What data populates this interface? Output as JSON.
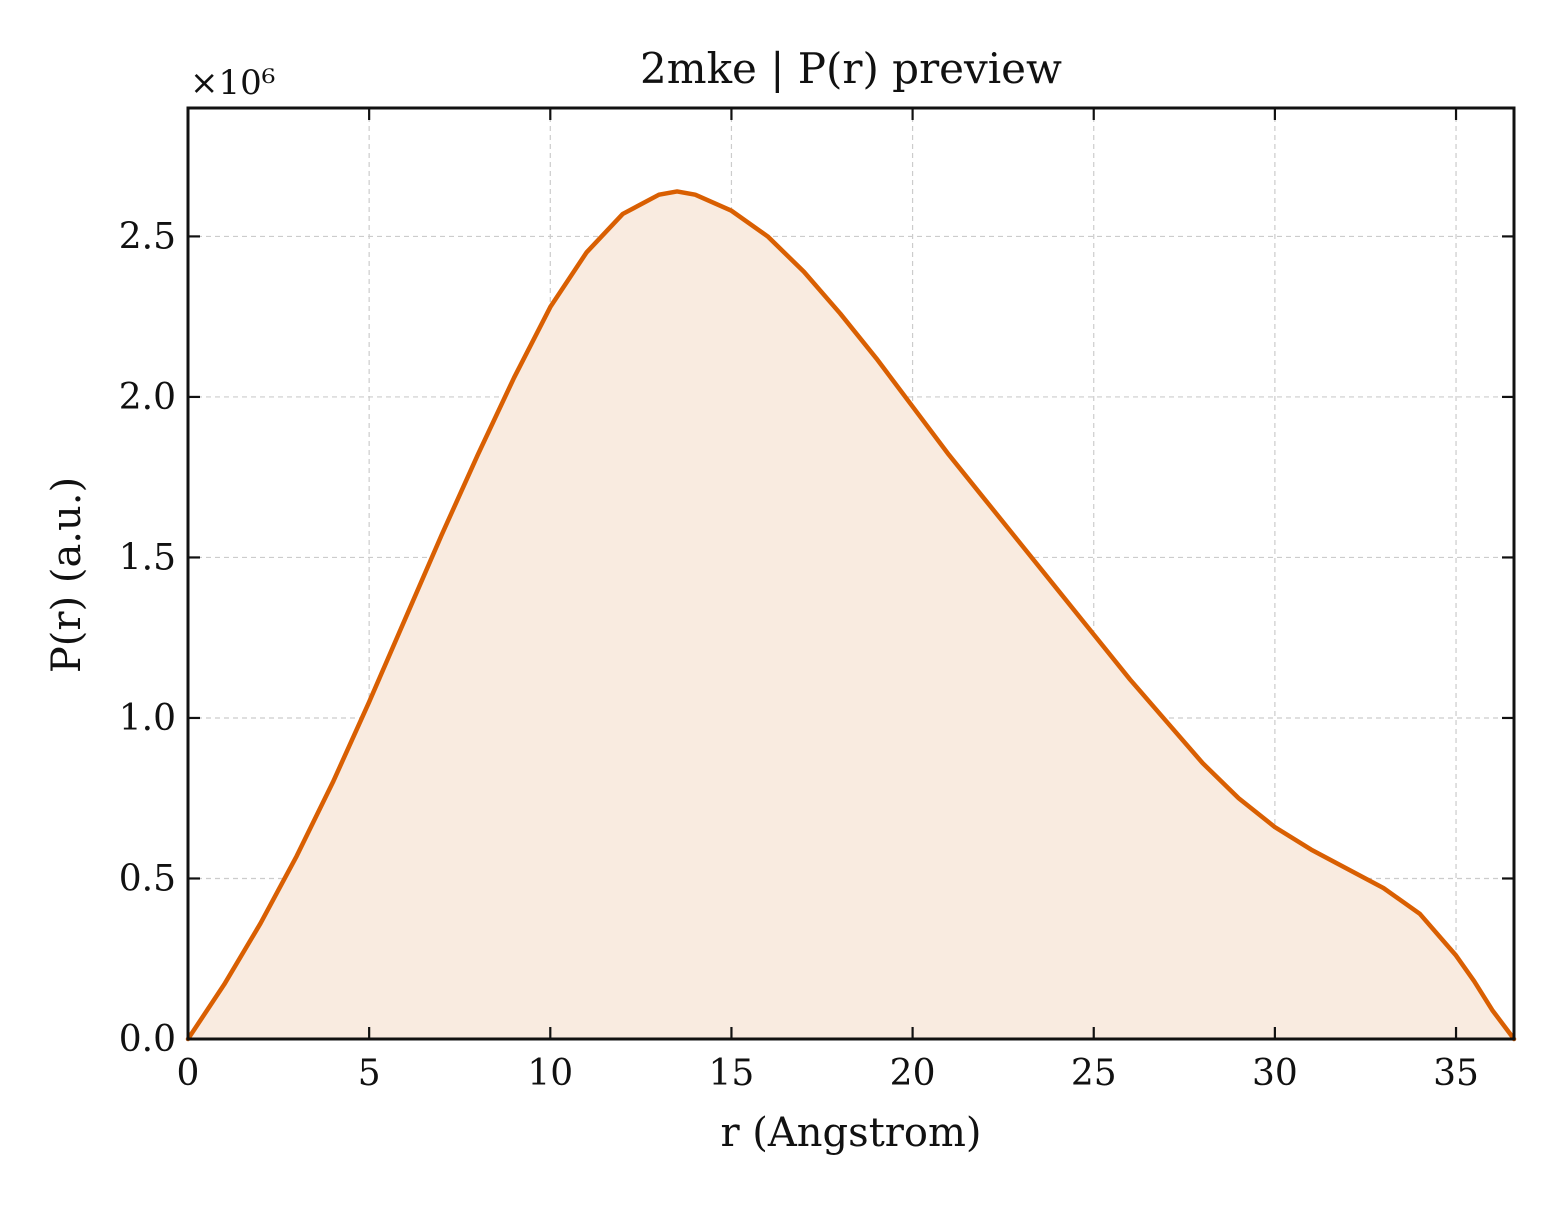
{
  "chart_data": {
    "type": "area",
    "title": "2mke | P(r) preview",
    "xlabel": "r (Angstrom)",
    "ylabel": "P(r) (a.u.)",
    "y_multiplier_label": "×10⁶",
    "xlim": [
      0,
      36.6
    ],
    "ylim": [
      0,
      2.9
    ],
    "x_ticks": [
      0,
      5,
      10,
      15,
      20,
      25,
      30,
      35
    ],
    "x_tick_labels": [
      "0",
      "5",
      "10",
      "15",
      "20",
      "25",
      "30",
      "35"
    ],
    "y_ticks": [
      0,
      0.5,
      1.0,
      1.5,
      2.0,
      2.5
    ],
    "y_tick_labels": [
      "0.0",
      "0.5",
      "1.0",
      "1.5",
      "2.0",
      "2.5"
    ],
    "grid": true,
    "line_color": "#D95F02",
    "fill_color": "#F9EBE0",
    "series": [
      {
        "x": [
          0,
          1,
          2,
          3,
          4,
          5,
          6,
          7,
          8,
          9,
          10,
          11,
          12,
          13,
          13.5,
          14,
          15,
          16,
          17,
          18,
          19,
          20,
          21,
          22,
          23,
          24,
          25,
          26,
          27,
          28,
          29,
          30,
          31,
          32,
          33,
          34,
          35,
          35.5,
          36,
          36.6
        ],
        "y": [
          0.0,
          0.17,
          0.36,
          0.57,
          0.8,
          1.05,
          1.31,
          1.57,
          1.82,
          2.06,
          2.28,
          2.45,
          2.57,
          2.63,
          2.64,
          2.63,
          2.58,
          2.5,
          2.39,
          2.26,
          2.12,
          1.97,
          1.82,
          1.68,
          1.54,
          1.4,
          1.26,
          1.12,
          0.99,
          0.86,
          0.75,
          0.66,
          0.59,
          0.53,
          0.47,
          0.39,
          0.26,
          0.18,
          0.09,
          0.0
        ]
      }
    ]
  }
}
